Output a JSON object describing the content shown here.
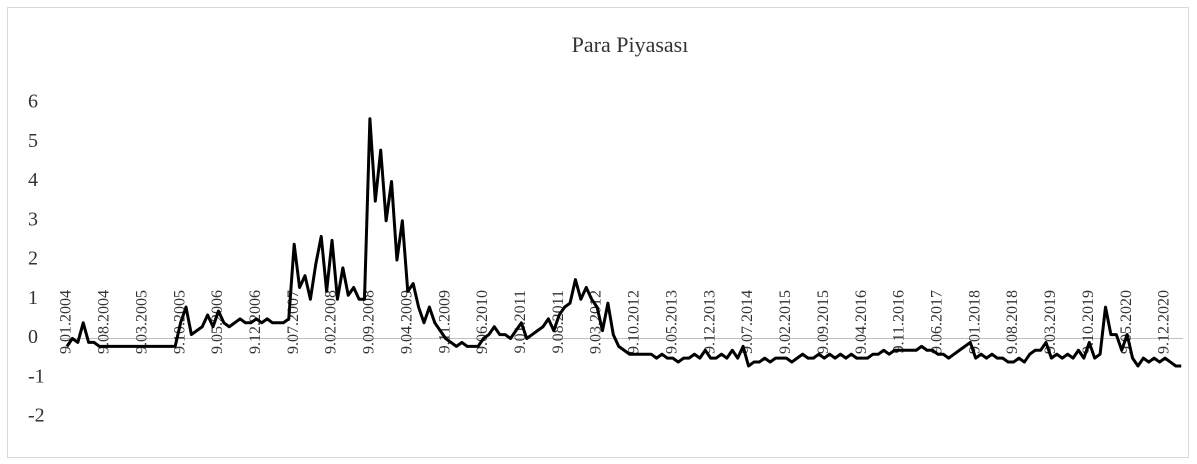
{
  "chart_data": {
    "type": "line",
    "title": "Para Piyasası",
    "categories": [
      "9.01.2004",
      null,
      null,
      null,
      null,
      null,
      null,
      "9.08.2004",
      null,
      null,
      null,
      null,
      null,
      null,
      "9.03.2005",
      null,
      null,
      null,
      null,
      null,
      null,
      "9.10.2005",
      null,
      null,
      null,
      null,
      null,
      null,
      "9.05.2006",
      null,
      null,
      null,
      null,
      null,
      null,
      "9.12.2006",
      null,
      null,
      null,
      null,
      null,
      null,
      "9.07.2007",
      null,
      null,
      null,
      null,
      null,
      null,
      "9.02.2008",
      null,
      null,
      null,
      null,
      null,
      null,
      "9.09.2008",
      null,
      null,
      null,
      null,
      null,
      null,
      "9.04.2009",
      null,
      null,
      null,
      null,
      null,
      null,
      "9.11.2009",
      null,
      null,
      null,
      null,
      null,
      null,
      "9.06.2010",
      null,
      null,
      null,
      null,
      null,
      null,
      "9.01.2011",
      null,
      null,
      null,
      null,
      null,
      null,
      "9.08.2011",
      null,
      null,
      null,
      null,
      null,
      null,
      "9.03.2012",
      null,
      null,
      null,
      null,
      null,
      null,
      "9.10.2012",
      null,
      null,
      null,
      null,
      null,
      null,
      "9.05.2013",
      null,
      null,
      null,
      null,
      null,
      null,
      "9.12.2013",
      null,
      null,
      null,
      null,
      null,
      null,
      "9.07.2014",
      null,
      null,
      null,
      null,
      null,
      null,
      "9.02.2015",
      null,
      null,
      null,
      null,
      null,
      null,
      "9.09.2015",
      null,
      null,
      null,
      null,
      null,
      null,
      "9.04.2016",
      null,
      null,
      null,
      null,
      null,
      null,
      "9.11.2016",
      null,
      null,
      null,
      null,
      null,
      null,
      "9.06.2017",
      null,
      null,
      null,
      null,
      null,
      null,
      "9.01.2018",
      null,
      null,
      null,
      null,
      null,
      null,
      "9.08.2018",
      null,
      null,
      null,
      null,
      null,
      null,
      "9.03.2019",
      null,
      null,
      null,
      null,
      null,
      null,
      "9.10.2019",
      null,
      null,
      null,
      null,
      null,
      null,
      "9.05.2020",
      null,
      null,
      null,
      null,
      null,
      null,
      "9.12.2020",
      null,
      null,
      null
    ],
    "series": [
      {
        "name": "Para Piyasası",
        "color": "#000000",
        "values": [
          -0.2,
          0,
          -0.1,
          0.4,
          -0.1,
          -0.1,
          -0.2,
          -0.2,
          -0.2,
          -0.2,
          -0.2,
          -0.2,
          -0.2,
          -0.2,
          -0.2,
          -0.2,
          -0.2,
          -0.2,
          -0.2,
          -0.2,
          -0.2,
          0.4,
          0.8,
          0.1,
          0.2,
          0.3,
          0.6,
          0.3,
          0.7,
          0.4,
          0.3,
          0.4,
          0.5,
          0.4,
          0.4,
          0.5,
          0.4,
          0.5,
          0.4,
          0.4,
          0.4,
          0.5,
          2.4,
          1.3,
          1.6,
          1.0,
          1.9,
          2.6,
          1.2,
          2.5,
          1.0,
          1.8,
          1.1,
          1.3,
          1.0,
          1.0,
          5.6,
          3.5,
          4.8,
          3.0,
          4.0,
          2.0,
          3.0,
          1.2,
          1.4,
          0.8,
          0.4,
          0.8,
          0.4,
          0.2,
          0.0,
          -0.1,
          -0.2,
          -0.1,
          -0.2,
          -0.2,
          -0.2,
          0.0,
          0.1,
          0.3,
          0.1,
          0.1,
          0.0,
          0.2,
          0.4,
          0.0,
          0.1,
          0.2,
          0.3,
          0.5,
          0.2,
          0.6,
          0.8,
          0.9,
          1.5,
          1.0,
          1.3,
          1.0,
          0.8,
          0.2,
          0.9,
          0.1,
          -0.2,
          -0.3,
          -0.4,
          -0.4,
          -0.4,
          -0.4,
          -0.4,
          -0.5,
          -0.4,
          -0.5,
          -0.5,
          -0.6,
          -0.5,
          -0.5,
          -0.4,
          -0.5,
          -0.3,
          -0.5,
          -0.5,
          -0.4,
          -0.5,
          -0.3,
          -0.5,
          -0.2,
          -0.7,
          -0.6,
          -0.6,
          -0.5,
          -0.6,
          -0.5,
          -0.5,
          -0.5,
          -0.6,
          -0.5,
          -0.4,
          -0.5,
          -0.5,
          -0.4,
          -0.5,
          -0.4,
          -0.5,
          -0.4,
          -0.5,
          -0.4,
          -0.5,
          -0.5,
          -0.5,
          -0.4,
          -0.4,
          -0.3,
          -0.4,
          -0.3,
          -0.3,
          -0.3,
          -0.3,
          -0.3,
          -0.2,
          -0.3,
          -0.3,
          -0.4,
          -0.4,
          -0.5,
          -0.4,
          -0.3,
          -0.2,
          -0.1,
          -0.5,
          -0.4,
          -0.5,
          -0.4,
          -0.5,
          -0.5,
          -0.6,
          -0.6,
          -0.5,
          -0.6,
          -0.4,
          -0.3,
          -0.3,
          -0.1,
          -0.5,
          -0.4,
          -0.5,
          -0.4,
          -0.5,
          -0.3,
          -0.5,
          -0.1,
          -0.5,
          -0.4,
          0.8,
          0.1,
          0.1,
          -0.3,
          0.1,
          -0.5,
          -0.7,
          -0.5,
          -0.6,
          -0.5,
          -0.6,
          -0.5,
          -0.6,
          -0.7,
          -0.7
        ]
      }
    ],
    "ylim": [
      -2,
      6
    ],
    "yticks": [
      6,
      5,
      4,
      3,
      2,
      1,
      0,
      -1,
      -2
    ]
  }
}
